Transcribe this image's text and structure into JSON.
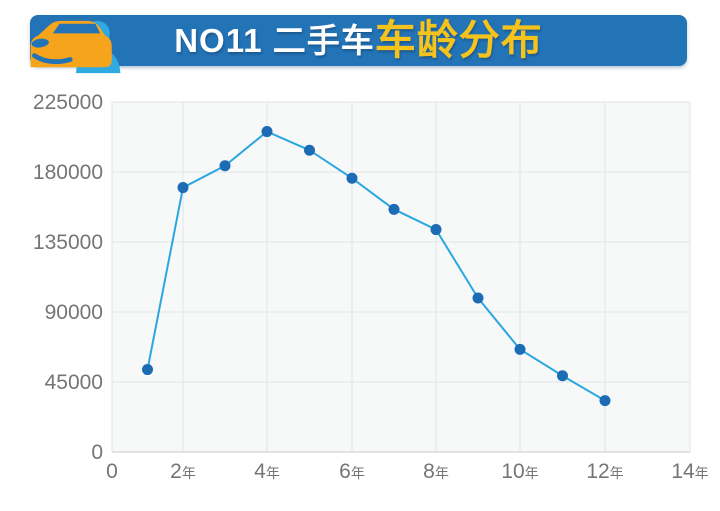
{
  "header": {
    "title_white": "NO11 二手车",
    "title_yellow": "车龄分布",
    "banner_color": "#2373b7",
    "title_white_color": "#ffffff",
    "title_yellow_color": "#f5c31b",
    "icon_car_color": "#f6a41c",
    "icon_person_color": "#2fabe1"
  },
  "chart_data": {
    "type": "line",
    "x": [
      1,
      2,
      3,
      4,
      5,
      6,
      7,
      8,
      9,
      10,
      11,
      12
    ],
    "values": [
      53000,
      170000,
      184000,
      206000,
      194000,
      176000,
      156000,
      143000,
      99000,
      66000,
      49000,
      33000
    ],
    "series_name": "车龄分布",
    "x_tick_positions": [
      0,
      2,
      4,
      6,
      8,
      10,
      12,
      14
    ],
    "x_tick_labels": [
      "0",
      "2年",
      "4年",
      "6年",
      "8年",
      "10年",
      "12年",
      "14年"
    ],
    "y_ticks": [
      0,
      45000,
      90000,
      135000,
      180000,
      225000
    ],
    "y_tick_labels": [
      "0",
      "45000",
      "90000",
      "135000",
      "180000",
      "225000"
    ],
    "xlim": [
      0,
      14
    ],
    "ylim": [
      0,
      225000
    ],
    "grid": true,
    "legend_position": "none",
    "line_color": "#2ba7e0",
    "marker_color": "#1c6bb5",
    "plot_bg": "#f7f8f8",
    "grid_color": "#e2e6e6",
    "axis_line_color": "#c7cbcb",
    "axis_text_color": "#757575"
  }
}
